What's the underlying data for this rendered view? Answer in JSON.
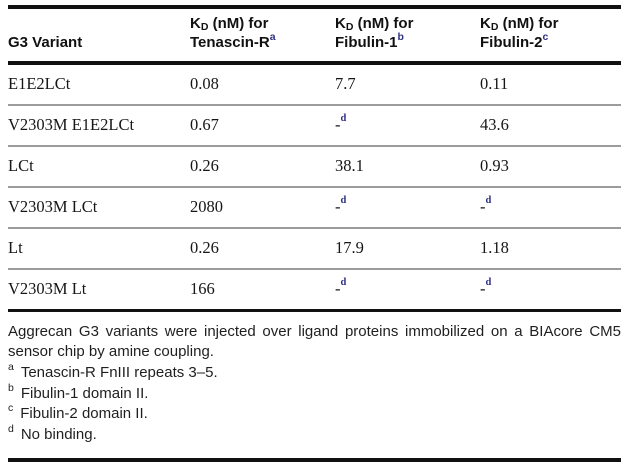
{
  "colors": {
    "background": "#ffffff",
    "text": "#1a1a1a",
    "navy_superscript": "#2e3082",
    "thick_rule": "#111111",
    "thin_rule": "#9c9c9c"
  },
  "table": {
    "header": {
      "variant_col": "G3 Variant",
      "kd_columns": [
        {
          "prefix": "K",
          "sub": "D",
          "rest": " (nM) for",
          "target": "Tenascin-R",
          "sup": "a"
        },
        {
          "prefix": "K",
          "sub": "D",
          "rest": " (nM) for",
          "target": "Fibulin-1",
          "sup": "b"
        },
        {
          "prefix": "K",
          "sub": "D",
          "rest": " (nM) for",
          "target": "Fibulin-2",
          "sup": "c"
        }
      ]
    },
    "rows": [
      {
        "variant": "E1E2LCt",
        "cells": [
          {
            "text": "0.08"
          },
          {
            "text": "7.7"
          },
          {
            "text": "0.11"
          }
        ]
      },
      {
        "variant": "V2303M E1E2LCt",
        "cells": [
          {
            "text": "0.67"
          },
          {
            "text": "-",
            "sup": "d"
          },
          {
            "text": "43.6"
          }
        ]
      },
      {
        "variant": "LCt",
        "cells": [
          {
            "text": "0.26"
          },
          {
            "text": "38.1"
          },
          {
            "text": "0.93"
          }
        ]
      },
      {
        "variant": "V2303M LCt",
        "cells": [
          {
            "text": "2080"
          },
          {
            "text": "-",
            "sup": "d"
          },
          {
            "text": "-",
            "sup": "d"
          }
        ]
      },
      {
        "variant": "Lt",
        "cells": [
          {
            "text": "0.26"
          },
          {
            "text": "17.9"
          },
          {
            "text": "1.18"
          }
        ]
      },
      {
        "variant": "V2303M Lt",
        "cells": [
          {
            "text": "166"
          },
          {
            "text": "-",
            "sup": "d"
          },
          {
            "text": "-",
            "sup": "d"
          }
        ]
      }
    ]
  },
  "footer": {
    "description": "Aggrecan G3 variants were injected over ligand proteins immobilized on a BIAcore CM5 sensor chip by amine coupling.",
    "notes": [
      {
        "marker": "a",
        "text": "Tenascin-R FnIII repeats 3–5."
      },
      {
        "marker": "b",
        "text": "Fibulin-1 domain II."
      },
      {
        "marker": "c",
        "text": "Fibulin-2 domain II."
      },
      {
        "marker": "d",
        "text": "No binding."
      }
    ]
  }
}
